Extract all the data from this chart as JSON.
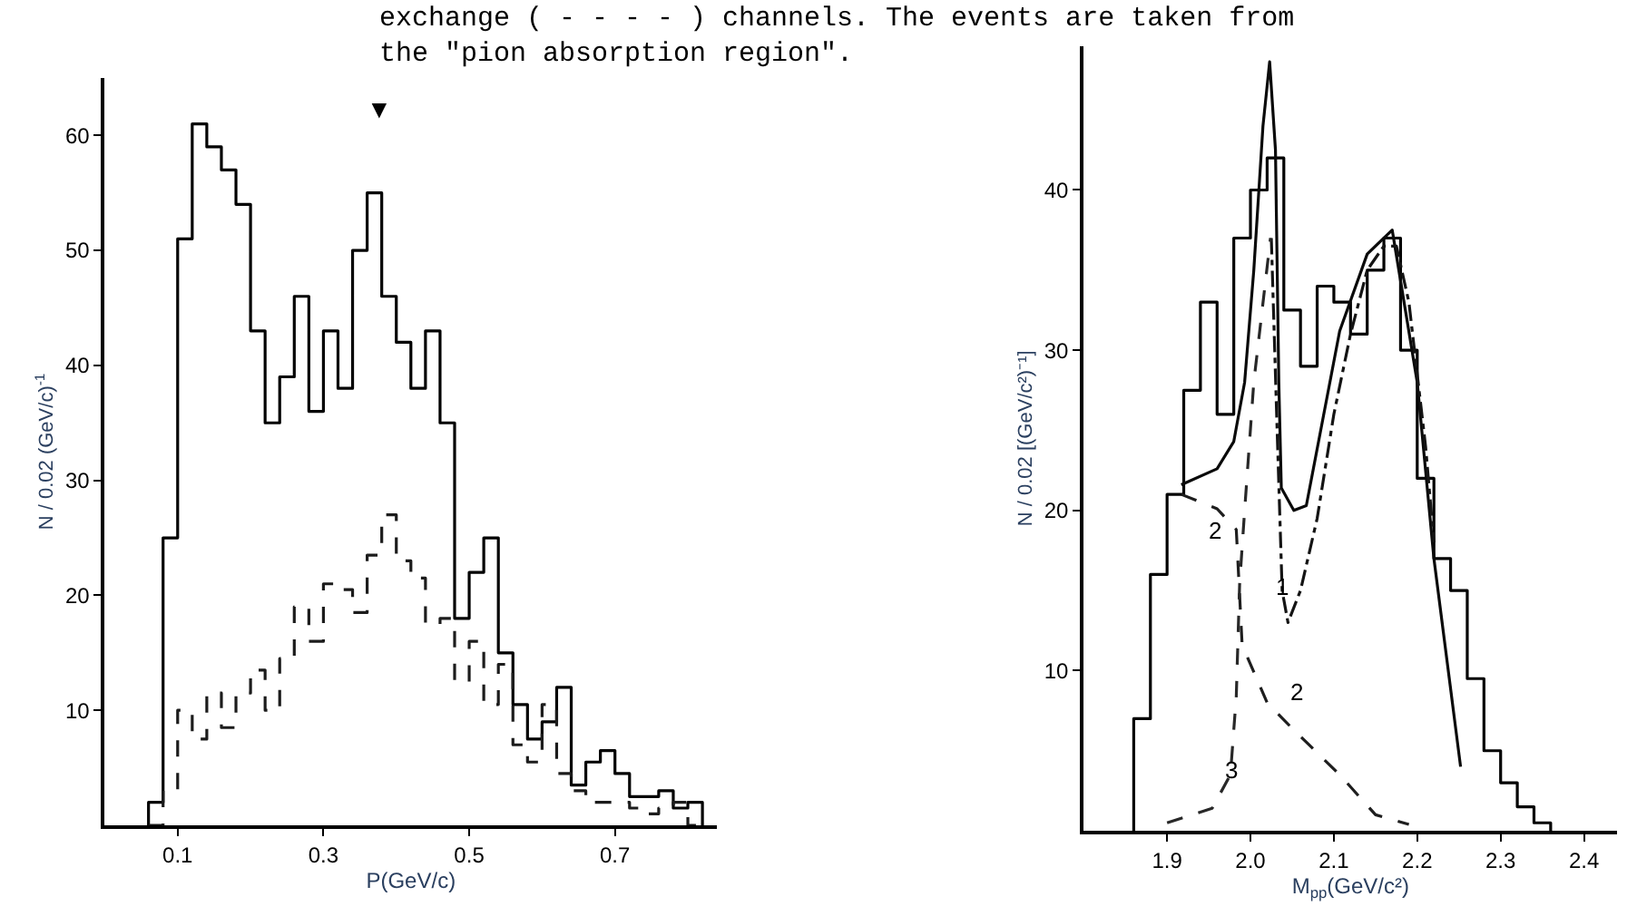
{
  "chart_data": [
    {
      "type": "histogram",
      "xlabel": "P(GeV/c)",
      "ylabel": "N / 0.02 (GeV/c)$^{-1}$",
      "bins": [
        0.06,
        0.08,
        0.1,
        0.12,
        0.14,
        0.16,
        0.18,
        0.2,
        0.22,
        0.24,
        0.26,
        0.28,
        0.3,
        0.32,
        0.34,
        0.36,
        0.38,
        0.4,
        0.42,
        0.44,
        0.46,
        0.48,
        0.5,
        0.52,
        0.54,
        0.56,
        0.58,
        0.6,
        0.62,
        0.64,
        0.66,
        0.68,
        0.7,
        0.72,
        0.74,
        0.76,
        0.78,
        0.8,
        0.82
      ],
      "series": [
        {
          "color": "#000000",
          "line_style": "solid",
          "values": [
            2,
            25,
            51,
            61,
            59,
            57,
            54,
            43,
            35,
            39,
            46,
            36,
            43,
            38,
            50,
            55,
            46,
            42,
            38,
            43,
            35,
            18,
            22,
            25,
            15,
            10.5,
            7.5,
            9,
            12,
            3.5,
            5.5,
            6.5,
            4.5,
            2.5,
            2.5,
            3,
            1.5,
            2
          ]
        },
        {
          "color": "#1c1c1c",
          "line_style": "dashed",
          "values": [
            null,
            3,
            10,
            7.5,
            11.5,
            8.5,
            11.5,
            13.5,
            10,
            14.5,
            19,
            16,
            21,
            20.5,
            18.5,
            23.5,
            27,
            23,
            21.5,
            17.5,
            18,
            12.5,
            16,
            10.5,
            14,
            7,
            5.5,
            10.5,
            4.5,
            3,
            2,
            2,
            2,
            1.5,
            1,
            1.5,
            2,
            null
          ]
        }
      ],
      "xlim": [
        0,
        0.84
      ],
      "xticks": [
        0.1,
        0.3,
        0.5,
        0.7
      ],
      "ylim": [
        0,
        65
      ],
      "yticks": [
        10,
        20,
        30,
        40,
        50,
        60
      ],
      "annotations": [
        "exchange ( - - - - ) channels. The events are taken from\nthe \"pion absorption region\".",
        "▼"
      ]
    },
    {
      "type": "histogram",
      "xlabel": "M$_{pp}$(GeV/c²)",
      "ylabel": "N / 0.02 [(GeV/c²)⁻¹]",
      "bins": [
        1.86,
        1.88,
        1.9,
        1.92,
        1.94,
        1.96,
        1.98,
        2.0,
        2.02,
        2.04,
        2.06,
        2.08,
        2.1,
        2.12,
        2.14,
        2.16,
        2.18,
        2.2,
        2.22,
        2.24,
        2.26,
        2.28,
        2.3,
        2.32,
        2.34,
        2.36
      ],
      "series": [
        {
          "color": "#000000",
          "line_style": "solid",
          "values": [
            7,
            16,
            21,
            27.5,
            33,
            26,
            37,
            40,
            42,
            32.5,
            29,
            34,
            33,
            31,
            35,
            37,
            30,
            22,
            17,
            15,
            9.5,
            5,
            3,
            1.5,
            0.5
          ]
        },
        {
          "type": "line",
          "color": "#0a0a0a",
          "line_style": "solid",
          "x": [
            1.917,
            1.96,
            1.98,
            1.993,
            2.004,
            2.015,
            2.023,
            2.03,
            2.034,
            2.037,
            2.052,
            2.067,
            2.107,
            2.14,
            2.17,
            2.2,
            2.22,
            2.252
          ],
          "values": [
            21.6,
            22.6,
            24.3,
            28,
            35,
            44,
            48,
            42.5,
            28,
            21.4,
            20,
            20.3,
            31.2,
            36,
            37.5,
            28,
            17,
            4
          ]
        },
        {
          "type": "line",
          "color": "#141414",
          "line_style": "dashdot",
          "x": [
            2.025,
            2.032,
            2.038,
            2.045,
            2.06,
            2.08,
            2.1,
            2.12,
            2.14,
            2.16,
            2.175,
            2.19,
            2.21,
            2.22
          ],
          "values": [
            37,
            25,
            15,
            13,
            15,
            19.5,
            26,
            31,
            35,
            36.5,
            36.5,
            33,
            24,
            18
          ]
        },
        {
          "type": "line",
          "color": "#1e1e1e",
          "line_style": "dashed",
          "x": [
            1.917,
            1.96,
            1.983,
            1.99,
            2.02,
            2.048,
            2.107,
            2.15,
            2.19
          ],
          "values": [
            21,
            20.1,
            18.8,
            11.6,
            8,
            6.5,
            3.5,
            1,
            0.4
          ]
        },
        {
          "type": "line",
          "color": "#282828",
          "line_style": "dashed",
          "x": [
            1.9,
            1.954,
            1.976,
            1.983,
            1.987,
            1.993,
            2.004,
            2.024
          ],
          "values": [
            0.5,
            1.4,
            3.5,
            8.4,
            15.4,
            20,
            28,
            37
          ]
        }
      ],
      "xlim": [
        1.8,
        2.44
      ],
      "xticks": [
        1.9,
        {
          "value": 2.0,
          "label": "2.0"
        },
        2.1,
        2.2,
        2.3,
        2.4
      ],
      "ylim": [
        0,
        49
      ],
      "yticks": [
        10,
        20,
        30,
        40
      ],
      "annotations": [
        "1",
        "2",
        "2",
        "3"
      ]
    }
  ]
}
